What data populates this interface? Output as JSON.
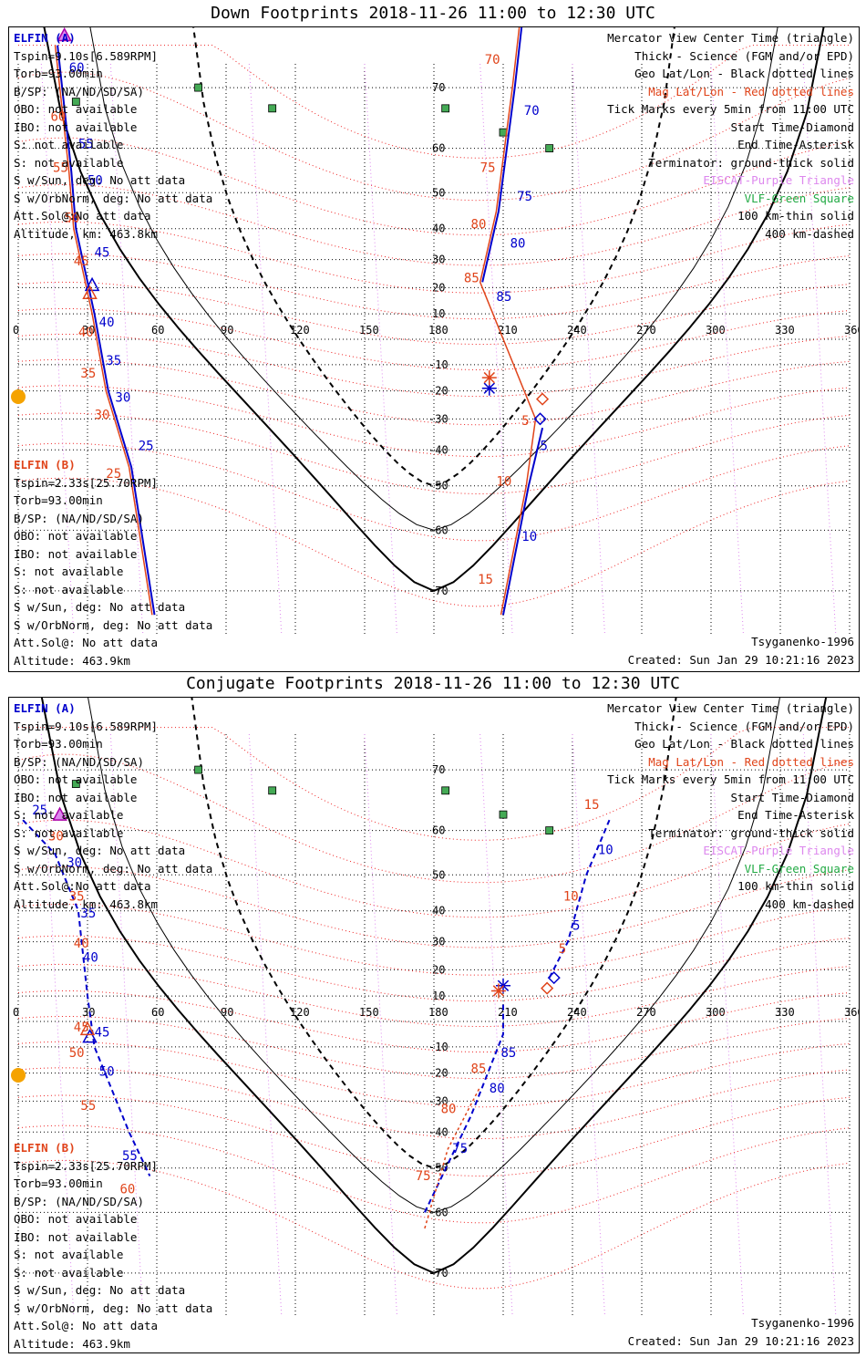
{
  "panels": [
    {
      "title": "Down Footprints 2018-11-26 11:00 to 12:30 UTC",
      "elfin_a": {
        "label": "ELFIN (A)",
        "lines": [
          "Tspin=9.10s[6.589RPM]",
          "Torb=93.00min",
          "B/SP: (NA/ND/SD/SA)",
          "OBO: not available",
          "IBO: not available",
          "S: not available",
          "S: not available",
          "S w/Sun, deg: No att data",
          "S w/OrbNorm, deg: No att data",
          "Att.Sol@:No att data",
          "Altitude, km: 463.8km"
        ]
      },
      "elfin_b": {
        "label": "ELFIN (B)",
        "lines": [
          "Tspin=2.33s[25.70RPM]",
          "Torb=93.00min",
          "B/SP: (NA/ND/SD/SA)",
          "OBO: not available",
          "IBO: not available",
          "S: not available",
          "S: not available",
          "S w/Sun, deg: No att data",
          "S w/OrbNorm, deg: No att data",
          "Att.Sol@: No att data",
          "Altitude: 463.9km"
        ]
      },
      "ticks_a_blue": [
        "60",
        "55",
        "50",
        "45",
        "40",
        "35",
        "30",
        "25"
      ],
      "ticks_a_red": [
        "60",
        "55",
        "50",
        "45",
        "40",
        "35",
        "30",
        "25"
      ],
      "ticks_b_blue": [
        "70",
        "75",
        "80",
        "85",
        "5",
        "10"
      ],
      "ticks_b_red": [
        "70",
        "75",
        "80",
        "85",
        "5",
        "10",
        "15"
      ]
    },
    {
      "title": "Conjugate Footprints 2018-11-26 11:00 to 12:30 UTC",
      "elfin_a": {
        "label": "ELFIN (A)",
        "lines": [
          "Tspin=9.10s[6.589RPM]",
          "Torb=93.00min",
          "B/SP: (NA/ND/SD/SA)",
          "OBO: not available",
          "IBO: not available",
          "S: not available",
          "S: not available",
          "S w/Sun, deg: No att data",
          "S w/OrbNorm, deg: No att data",
          "Att.Sol@:No att data",
          "Altitude, km: 463.8km"
        ]
      },
      "elfin_b": {
        "label": "ELFIN (B)",
        "lines": [
          "Tspin=2.33s[25.70RPM]",
          "Torb=93.00min",
          "B/SP: (NA/ND/SD/SA)",
          "OBO: not available",
          "IBO: not available",
          "S: not available",
          "S: not available",
          "S w/Sun, deg: No att data",
          "S w/OrbNorm, deg: No att data",
          "Att.Sol@: No att data",
          "Altitude: 463.9km"
        ]
      },
      "ticks_a_blue": [
        "25",
        "30",
        "35",
        "40",
        "45",
        "50",
        "55"
      ],
      "ticks_a_red": [
        "30",
        "35",
        "40",
        "45",
        "50",
        "55",
        "60"
      ],
      "ticks_b_blue": [
        "85",
        "80",
        "75",
        "5",
        "10"
      ],
      "ticks_b_red": [
        "85",
        "80",
        "75",
        "5",
        "10",
        "15"
      ]
    }
  ],
  "legend": {
    "line1": "Mercator View Center Time (triangle)",
    "line2": "Thick - Science (FGM and/or EPD)",
    "line3": "Geo Lat/Lon - Black dotted lines",
    "line4": "Mag Lat/Lon - Red dotted lines",
    "line5": "Tick Marks every 5min from 11:00 UTC",
    "line6": "Start Time-Diamond",
    "line7": "End Time-Asterisk",
    "line8": "Terminator: ground-thick solid",
    "line9": "EISCAT-Purple Triangle",
    "line10": "VLF-Green Square",
    "line11": "100 km-thin solid",
    "line12": "400 km-dashed"
  },
  "footer": {
    "model": "Tsyganenko-1996",
    "created": "Created: Sun Jan 29 10:21:16 2023"
  },
  "axes": {
    "lon_labels": [
      "0",
      "30",
      "60",
      "90",
      "120",
      "150",
      "180",
      "210",
      "240",
      "270",
      "300",
      "330",
      "360"
    ],
    "lat_labels_north": [
      "70",
      "60",
      "50",
      "40",
      "30",
      "20",
      "10"
    ],
    "lat_labels_south": [
      "-10",
      "-20",
      "-30",
      "-40",
      "-50",
      "-60",
      "-70"
    ]
  },
  "colors": {
    "elfin_a": "#0000cc",
    "elfin_b": "#e0441a",
    "mag_grid": "#ee2222",
    "geo_grid": "#000000",
    "eiscat": "#dd88ee",
    "vlf": "#44aa55",
    "sun": "#f5a300"
  }
}
